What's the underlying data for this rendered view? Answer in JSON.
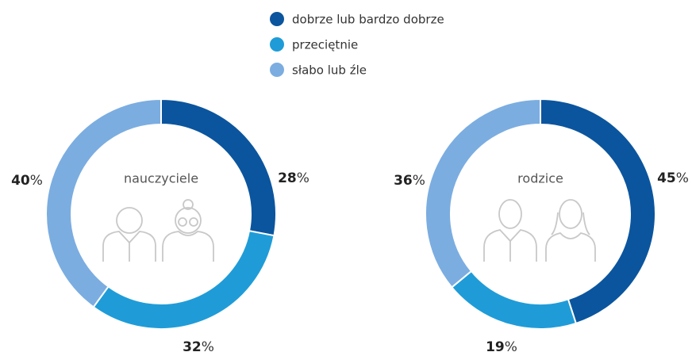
{
  "legend": {
    "categories": [
      "dobrze lub bardzo dobrze",
      "przeciętnie",
      "słabo lub źle"
    ],
    "colors": [
      "#0b559e",
      "#1f9cd8",
      "#7badE0"
    ]
  },
  "chart_data": [
    {
      "type": "pie",
      "title": "nauczyciele",
      "values": [
        28,
        32,
        40
      ],
      "unit": "%"
    },
    {
      "type": "pie",
      "title": "rodzice",
      "values": [
        45,
        19,
        36
      ],
      "unit": "%"
    }
  ]
}
